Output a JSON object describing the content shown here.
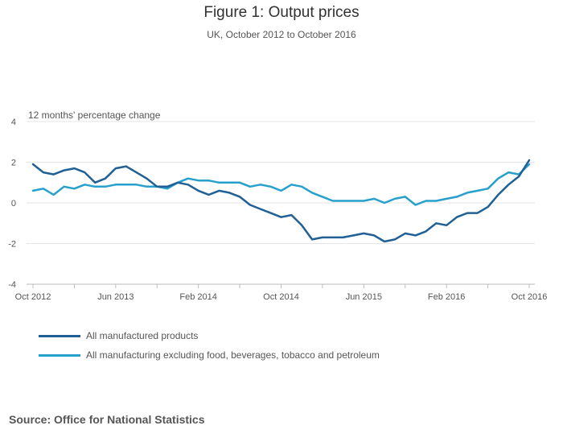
{
  "chart_data": {
    "type": "line",
    "title": "Figure 1: Output prices",
    "subtitle": "UK, October 2012 to October 2016",
    "ylabel": "12 months' percentage change",
    "xlabel": "",
    "ylim": [
      -4,
      4
    ],
    "yticks": [
      "4",
      "2",
      "0",
      "-2",
      "-4"
    ],
    "yvalues": [
      4,
      2,
      0,
      -2,
      -4
    ],
    "xtick_labels": [
      "Oct 2012",
      "Jun 2013",
      "Feb 2014",
      "Oct 2014",
      "Jun 2015",
      "Feb 2016",
      "Oct 2016"
    ],
    "xtick_index": [
      0,
      8,
      16,
      24,
      32,
      40,
      48
    ],
    "n_points": 49,
    "grid": true,
    "legend_position": "bottom-left",
    "series": [
      {
        "name": "All manufactured products",
        "color": "#206095",
        "values": [
          1.9,
          1.5,
          1.4,
          1.6,
          1.7,
          1.5,
          1.0,
          1.2,
          1.7,
          1.8,
          1.5,
          1.2,
          0.8,
          0.8,
          1.0,
          0.9,
          0.6,
          0.4,
          0.6,
          0.5,
          0.3,
          -0.1,
          -0.3,
          -0.5,
          -0.7,
          -0.6,
          -1.1,
          -1.8,
          -1.7,
          -1.7,
          -1.7,
          -1.6,
          -1.5,
          -1.6,
          -1.9,
          -1.8,
          -1.5,
          -1.6,
          -1.4,
          -1.0,
          -1.1,
          -0.7,
          -0.5,
          -0.5,
          -0.2,
          0.4,
          0.9,
          1.3,
          2.1
        ]
      },
      {
        "name": "All manufacturing excluding food, beverages, tobacco and petroleum",
        "color": "#27a0cc",
        "values": [
          0.6,
          0.7,
          0.4,
          0.8,
          0.7,
          0.9,
          0.8,
          0.8,
          0.9,
          0.9,
          0.9,
          0.8,
          0.8,
          0.7,
          1.0,
          1.2,
          1.1,
          1.1,
          1.0,
          1.0,
          1.0,
          0.8,
          0.9,
          0.8,
          0.6,
          0.9,
          0.8,
          0.5,
          0.3,
          0.1,
          0.1,
          0.1,
          0.1,
          0.2,
          0.0,
          0.2,
          0.3,
          -0.1,
          0.1,
          0.1,
          0.2,
          0.3,
          0.5,
          0.6,
          0.7,
          1.2,
          1.5,
          1.4,
          1.9
        ]
      }
    ],
    "source": "Source: Office for National Statistics"
  }
}
